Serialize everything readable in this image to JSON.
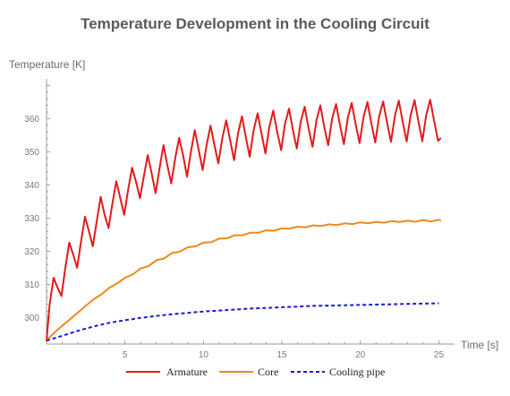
{
  "chart_data": {
    "type": "line",
    "title": "Temperature Development in the Cooling Circuit",
    "xlabel": "Time [s]",
    "ylabel": "Temperature [K]",
    "xlim": [
      0,
      26
    ],
    "ylim": [
      292,
      372
    ],
    "xticks": [
      5,
      10,
      15,
      20,
      25
    ],
    "yticks": [
      300,
      310,
      320,
      330,
      340,
      350,
      360
    ],
    "grid": false,
    "legend_position": "bottom-center",
    "series": [
      {
        "name": "Armature",
        "color": "#e31a1c",
        "style": "solid",
        "x": [
          0.0,
          0.2,
          0.45,
          0.7,
          0.95,
          1.2,
          1.45,
          1.7,
          1.95,
          2.2,
          2.45,
          2.7,
          2.95,
          3.2,
          3.45,
          3.7,
          3.95,
          4.2,
          4.45,
          4.7,
          4.95,
          5.2,
          5.45,
          5.7,
          5.95,
          6.2,
          6.45,
          6.7,
          6.95,
          7.2,
          7.45,
          7.7,
          7.95,
          8.2,
          8.45,
          8.7,
          8.95,
          9.2,
          9.45,
          9.7,
          9.95,
          10.2,
          10.45,
          10.7,
          10.95,
          11.2,
          11.45,
          11.7,
          11.95,
          12.2,
          12.45,
          12.7,
          12.95,
          13.2,
          13.45,
          13.7,
          13.95,
          14.2,
          14.45,
          14.7,
          14.95,
          15.2,
          15.45,
          15.7,
          15.95,
          16.2,
          16.45,
          16.7,
          16.95,
          17.2,
          17.45,
          17.7,
          17.95,
          18.2,
          18.45,
          18.7,
          18.95,
          19.2,
          19.45,
          19.7,
          19.95,
          20.2,
          20.45,
          20.7,
          20.95,
          21.2,
          21.45,
          21.7,
          21.95,
          22.2,
          22.45,
          22.7,
          22.95,
          23.2,
          23.45,
          23.7,
          23.95,
          24.2,
          24.45,
          24.7,
          24.95,
          25.1
        ],
        "values": [
          293.0,
          304.0,
          312.0,
          309.0,
          306.5,
          315.0,
          322.6,
          319.0,
          315.0,
          323.0,
          330.4,
          326.0,
          321.5,
          329.0,
          336.4,
          331.0,
          327.0,
          334.5,
          341.1,
          336.0,
          331.0,
          338.5,
          345.2,
          341.0,
          336.0,
          342.5,
          349.0,
          343.5,
          337.5,
          345.0,
          352.0,
          346.0,
          340.5,
          348.0,
          354.2,
          349.0,
          342.5,
          350.0,
          356.5,
          350.5,
          344.5,
          352.0,
          357.9,
          352.0,
          346.5,
          354.0,
          359.5,
          353.5,
          347.5,
          355.5,
          360.7,
          354.5,
          348.5,
          356.5,
          361.6,
          355.5,
          349.5,
          357.5,
          362.4,
          356.0,
          350.5,
          358.5,
          363.0,
          356.5,
          351.0,
          359.0,
          363.6,
          357.0,
          351.5,
          359.5,
          364.0,
          357.5,
          352.0,
          360.0,
          364.4,
          358.0,
          352.3,
          360.2,
          364.7,
          358.3,
          352.6,
          360.5,
          365.0,
          358.6,
          352.8,
          360.7,
          365.2,
          358.8,
          353.0,
          360.9,
          365.4,
          359.0,
          353.1,
          361.0,
          365.6,
          359.1,
          353.2,
          361.1,
          365.7,
          359.3,
          353.3,
          354.0
        ]
      },
      {
        "name": "Core",
        "color": "#f0891a",
        "style": "solid",
        "x": [
          0,
          0.5,
          1,
          1.5,
          2,
          2.5,
          3,
          3.5,
          4,
          4.5,
          5,
          5.5,
          6,
          6.5,
          7,
          7.5,
          8,
          8.5,
          9,
          9.5,
          10,
          10.5,
          11,
          11.5,
          12,
          12.5,
          13,
          13.5,
          14,
          14.5,
          15,
          15.5,
          16,
          16.5,
          17,
          17.5,
          18,
          18.5,
          19,
          19.5,
          20,
          20.5,
          21,
          21.5,
          22,
          22.5,
          23,
          23.5,
          24,
          24.5,
          25,
          25.1
        ],
        "values": [
          293.0,
          295.5,
          297.5,
          299.5,
          301.5,
          303.5,
          305.5,
          307.0,
          309.0,
          310.3,
          312.0,
          313.0,
          314.8,
          315.5,
          317.3,
          317.8,
          319.5,
          319.9,
          321.2,
          321.5,
          322.6,
          322.7,
          323.8,
          323.9,
          324.8,
          324.8,
          325.6,
          325.6,
          326.3,
          326.2,
          326.9,
          326.8,
          327.4,
          327.2,
          327.8,
          327.6,
          328.1,
          327.9,
          328.4,
          328.2,
          328.7,
          328.4,
          328.9,
          328.6,
          329.1,
          328.8,
          329.2,
          328.9,
          329.4,
          329.0,
          329.5,
          329.3
        ]
      },
      {
        "name": "Cooling pipe",
        "color": "#1a1ad6",
        "style": "dashed",
        "x": [
          0,
          1,
          2,
          3,
          4,
          5,
          6,
          7,
          8,
          9,
          10,
          11,
          12,
          13,
          14,
          15,
          16,
          17,
          18,
          19,
          20,
          21,
          22,
          23,
          24,
          25
        ],
        "values": [
          293.0,
          294.5,
          296.0,
          297.3,
          298.4,
          299.2,
          299.9,
          300.5,
          301.0,
          301.4,
          301.8,
          302.1,
          302.4,
          302.7,
          302.9,
          303.1,
          303.3,
          303.5,
          303.6,
          303.7,
          303.8,
          303.9,
          304.0,
          304.1,
          304.2,
          304.3
        ]
      }
    ]
  }
}
